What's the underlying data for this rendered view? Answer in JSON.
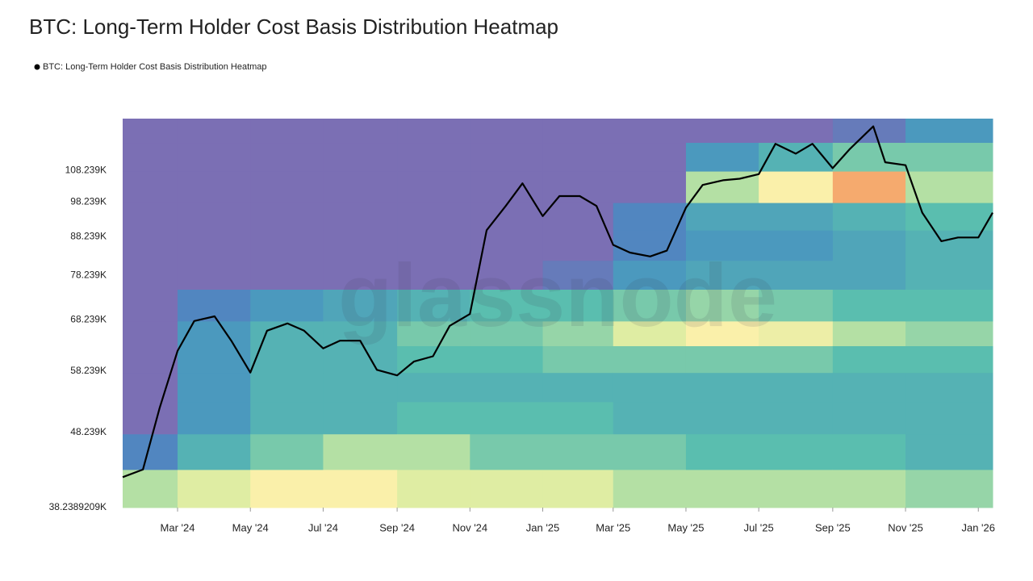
{
  "chart_data": {
    "type": "line",
    "title": "BTC: Long-Term Holder Cost Basis Distribution Heatmap",
    "watermark": "glassnode",
    "log_y": true,
    "xlim": [
      "2024-01-15",
      "2026-01-13"
    ],
    "ylim": [
      38238.9209,
      127000
    ],
    "xticks": [
      {
        "value": "2024-03-01",
        "label": "Mar '24"
      },
      {
        "value": "2024-05-01",
        "label": "May '24"
      },
      {
        "value": "2024-07-01",
        "label": "Jul '24"
      },
      {
        "value": "2024-09-01",
        "label": "Sep '24"
      },
      {
        "value": "2024-11-01",
        "label": "Nov '24"
      },
      {
        "value": "2025-01-01",
        "label": "Jan '25"
      },
      {
        "value": "2025-03-01",
        "label": "Mar '25"
      },
      {
        "value": "2025-05-01",
        "label": "May '25"
      },
      {
        "value": "2025-07-01",
        "label": "Jul '25"
      },
      {
        "value": "2025-09-01",
        "label": "Sep '25"
      },
      {
        "value": "2025-11-01",
        "label": "Nov '25"
      },
      {
        "value": "2026-01-01",
        "label": "Jan '26"
      }
    ],
    "yticks": [
      {
        "value": 38238.9209,
        "label": "38.2389209K"
      },
      {
        "value": 48239,
        "label": "48.239K"
      },
      {
        "value": 58239,
        "label": "58.239K"
      },
      {
        "value": 68239,
        "label": "68.239K"
      },
      {
        "value": 78239,
        "label": "78.239K"
      },
      {
        "value": 88239,
        "label": "88.239K"
      },
      {
        "value": 98239,
        "label": "98.239K"
      },
      {
        "value": 108239,
        "label": "108.239K"
      }
    ],
    "x": [
      "2024-01-15",
      "2024-02-01",
      "2024-02-15",
      "2024-03-01",
      "2024-03-15",
      "2024-04-01",
      "2024-04-15",
      "2024-05-01",
      "2024-05-15",
      "2024-06-01",
      "2024-06-15",
      "2024-07-01",
      "2024-07-15",
      "2024-08-01",
      "2024-08-15",
      "2024-09-01",
      "2024-09-15",
      "2024-10-01",
      "2024-10-15",
      "2024-11-01",
      "2024-11-15",
      "2024-12-01",
      "2024-12-15",
      "2025-01-01",
      "2025-01-15",
      "2025-02-01",
      "2025-02-15",
      "2025-03-01",
      "2025-03-15",
      "2025-04-01",
      "2025-04-15",
      "2025-05-01",
      "2025-05-15",
      "2025-06-01",
      "2025-06-15",
      "2025-07-01",
      "2025-07-15",
      "2025-08-01",
      "2025-08-15",
      "2025-09-01",
      "2025-09-15",
      "2025-10-05",
      "2025-10-15",
      "2025-11-01",
      "2025-11-15",
      "2025-12-01",
      "2025-12-15",
      "2026-01-01",
      "2026-01-13"
    ],
    "series": [
      {
        "name": "BTC: Long-Term Holder Cost Basis Distribution Heatmap",
        "color": "#000000",
        "values": [
          42000,
          43000,
          52000,
          62000,
          68000,
          69000,
          64000,
          58000,
          66000,
          67500,
          66000,
          62500,
          64000,
          64000,
          58500,
          57500,
          60000,
          61000,
          67000,
          69500,
          90000,
          97000,
          104000,
          94000,
          100000,
          100000,
          97000,
          86000,
          84000,
          83000,
          84500,
          96500,
          103500,
          105000,
          105500,
          107000,
          117500,
          114000,
          117500,
          109000,
          115500,
          124000,
          111000,
          110000,
          95000,
          87000,
          88000,
          88000,
          95000
        ]
      }
    ],
    "heatmap": {
      "x": [
        "2024-01-15",
        "2024-03-01",
        "2024-05-01",
        "2024-07-01",
        "2024-09-01",
        "2024-11-01",
        "2025-01-01",
        "2025-03-01",
        "2025-05-01",
        "2025-07-01",
        "2025-09-01",
        "2025-11-01",
        "2026-01-13"
      ],
      "levels": [
        38238.9209,
        43000,
        48000,
        53000,
        58000,
        63000,
        68000,
        75000,
        82000,
        90000,
        98000,
        108000,
        118000,
        127000
      ],
      "density": [
        [
          0.6,
          0.2,
          0,
          0,
          0,
          0,
          0,
          0,
          0,
          0,
          0,
          0,
          0
        ],
        [
          0.7,
          0.4,
          0.3,
          0.3,
          0.3,
          0.3,
          0.2,
          0,
          0,
          0,
          0,
          0,
          0
        ],
        [
          0.8,
          0.5,
          0.4,
          0.4,
          0.4,
          0.4,
          0.3,
          0,
          0,
          0,
          0,
          0,
          0
        ],
        [
          0.8,
          0.6,
          0.4,
          0.4,
          0.4,
          0.4,
          0.35,
          0,
          0,
          0,
          0,
          0,
          0
        ],
        [
          0.7,
          0.6,
          0.45,
          0.4,
          0.45,
          0.5,
          0.4,
          0,
          0,
          0,
          0,
          0,
          0
        ],
        [
          0.7,
          0.5,
          0.45,
          0.4,
          0.45,
          0.5,
          0.45,
          0,
          0,
          0,
          0,
          0,
          0
        ],
        [
          0.7,
          0.5,
          0.45,
          0.4,
          0.5,
          0.55,
          0.45,
          0.1,
          0,
          0,
          0,
          0,
          0
        ],
        [
          0.6,
          0.5,
          0.4,
          0.4,
          0.5,
          0.7,
          0.5,
          0.3,
          0.2,
          0.2,
          0,
          0,
          0
        ],
        [
          0.6,
          0.45,
          0.4,
          0.4,
          0.5,
          0.8,
          0.55,
          0.35,
          0.3,
          0.35,
          0.6,
          0.3,
          0
        ],
        [
          0.6,
          0.45,
          0.4,
          0.4,
          0.5,
          0.75,
          0.5,
          0.35,
          0.3,
          0.35,
          0.8,
          0.4,
          0
        ],
        [
          0.6,
          0.45,
          0.4,
          0.4,
          0.45,
          0.6,
          0.45,
          0.35,
          0.35,
          0.4,
          0.9,
          0.5,
          0.1
        ],
        [
          0.55,
          0.4,
          0.4,
          0.4,
          0.45,
          0.55,
          0.45,
          0.4,
          0.4,
          0.45,
          0.6,
          0.5,
          0.3
        ]
      ]
    }
  }
}
